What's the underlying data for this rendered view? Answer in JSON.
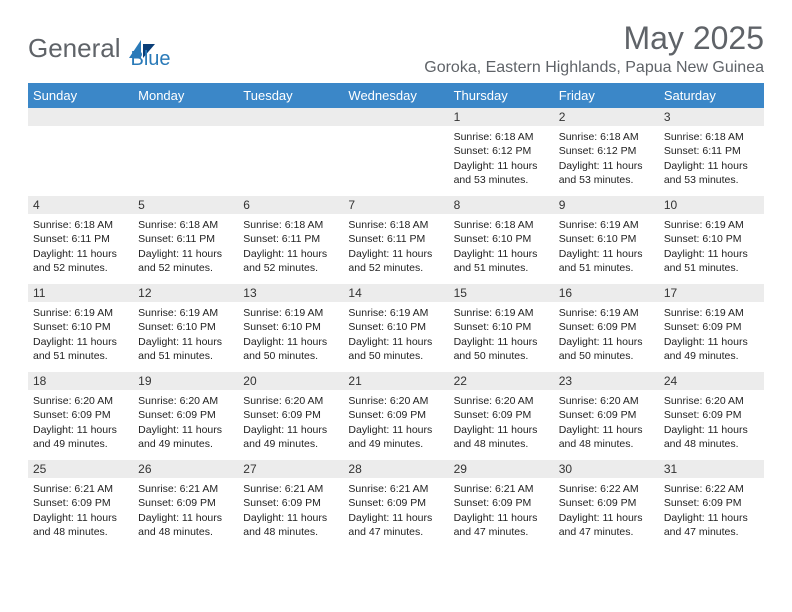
{
  "brand": {
    "word1": "General",
    "word2": "Blue"
  },
  "title": "May 2025",
  "location": "Goroka, Eastern Highlands, Papua New Guinea",
  "colors": {
    "header_bg": "#3b87c8",
    "header_text": "#ffffff",
    "daynum_bg": "#ececec",
    "rule": "#3b6fa0",
    "brand_gray": "#5f6368",
    "brand_blue": "#2a7ab8"
  },
  "dow": [
    "Sunday",
    "Monday",
    "Tuesday",
    "Wednesday",
    "Thursday",
    "Friday",
    "Saturday"
  ],
  "weeks": [
    [
      {
        "n": "",
        "t": ""
      },
      {
        "n": "",
        "t": ""
      },
      {
        "n": "",
        "t": ""
      },
      {
        "n": "",
        "t": ""
      },
      {
        "n": "1",
        "t": "Sunrise: 6:18 AM\nSunset: 6:12 PM\nDaylight: 11 hours and 53 minutes."
      },
      {
        "n": "2",
        "t": "Sunrise: 6:18 AM\nSunset: 6:12 PM\nDaylight: 11 hours and 53 minutes."
      },
      {
        "n": "3",
        "t": "Sunrise: 6:18 AM\nSunset: 6:11 PM\nDaylight: 11 hours and 53 minutes."
      }
    ],
    [
      {
        "n": "4",
        "t": "Sunrise: 6:18 AM\nSunset: 6:11 PM\nDaylight: 11 hours and 52 minutes."
      },
      {
        "n": "5",
        "t": "Sunrise: 6:18 AM\nSunset: 6:11 PM\nDaylight: 11 hours and 52 minutes."
      },
      {
        "n": "6",
        "t": "Sunrise: 6:18 AM\nSunset: 6:11 PM\nDaylight: 11 hours and 52 minutes."
      },
      {
        "n": "7",
        "t": "Sunrise: 6:18 AM\nSunset: 6:11 PM\nDaylight: 11 hours and 52 minutes."
      },
      {
        "n": "8",
        "t": "Sunrise: 6:18 AM\nSunset: 6:10 PM\nDaylight: 11 hours and 51 minutes."
      },
      {
        "n": "9",
        "t": "Sunrise: 6:19 AM\nSunset: 6:10 PM\nDaylight: 11 hours and 51 minutes."
      },
      {
        "n": "10",
        "t": "Sunrise: 6:19 AM\nSunset: 6:10 PM\nDaylight: 11 hours and 51 minutes."
      }
    ],
    [
      {
        "n": "11",
        "t": "Sunrise: 6:19 AM\nSunset: 6:10 PM\nDaylight: 11 hours and 51 minutes."
      },
      {
        "n": "12",
        "t": "Sunrise: 6:19 AM\nSunset: 6:10 PM\nDaylight: 11 hours and 51 minutes."
      },
      {
        "n": "13",
        "t": "Sunrise: 6:19 AM\nSunset: 6:10 PM\nDaylight: 11 hours and 50 minutes."
      },
      {
        "n": "14",
        "t": "Sunrise: 6:19 AM\nSunset: 6:10 PM\nDaylight: 11 hours and 50 minutes."
      },
      {
        "n": "15",
        "t": "Sunrise: 6:19 AM\nSunset: 6:10 PM\nDaylight: 11 hours and 50 minutes."
      },
      {
        "n": "16",
        "t": "Sunrise: 6:19 AM\nSunset: 6:09 PM\nDaylight: 11 hours and 50 minutes."
      },
      {
        "n": "17",
        "t": "Sunrise: 6:19 AM\nSunset: 6:09 PM\nDaylight: 11 hours and 49 minutes."
      }
    ],
    [
      {
        "n": "18",
        "t": "Sunrise: 6:20 AM\nSunset: 6:09 PM\nDaylight: 11 hours and 49 minutes."
      },
      {
        "n": "19",
        "t": "Sunrise: 6:20 AM\nSunset: 6:09 PM\nDaylight: 11 hours and 49 minutes."
      },
      {
        "n": "20",
        "t": "Sunrise: 6:20 AM\nSunset: 6:09 PM\nDaylight: 11 hours and 49 minutes."
      },
      {
        "n": "21",
        "t": "Sunrise: 6:20 AM\nSunset: 6:09 PM\nDaylight: 11 hours and 49 minutes."
      },
      {
        "n": "22",
        "t": "Sunrise: 6:20 AM\nSunset: 6:09 PM\nDaylight: 11 hours and 48 minutes."
      },
      {
        "n": "23",
        "t": "Sunrise: 6:20 AM\nSunset: 6:09 PM\nDaylight: 11 hours and 48 minutes."
      },
      {
        "n": "24",
        "t": "Sunrise: 6:20 AM\nSunset: 6:09 PM\nDaylight: 11 hours and 48 minutes."
      }
    ],
    [
      {
        "n": "25",
        "t": "Sunrise: 6:21 AM\nSunset: 6:09 PM\nDaylight: 11 hours and 48 minutes."
      },
      {
        "n": "26",
        "t": "Sunrise: 6:21 AM\nSunset: 6:09 PM\nDaylight: 11 hours and 48 minutes."
      },
      {
        "n": "27",
        "t": "Sunrise: 6:21 AM\nSunset: 6:09 PM\nDaylight: 11 hours and 48 minutes."
      },
      {
        "n": "28",
        "t": "Sunrise: 6:21 AM\nSunset: 6:09 PM\nDaylight: 11 hours and 47 minutes."
      },
      {
        "n": "29",
        "t": "Sunrise: 6:21 AM\nSunset: 6:09 PM\nDaylight: 11 hours and 47 minutes."
      },
      {
        "n": "30",
        "t": "Sunrise: 6:22 AM\nSunset: 6:09 PM\nDaylight: 11 hours and 47 minutes."
      },
      {
        "n": "31",
        "t": "Sunrise: 6:22 AM\nSunset: 6:09 PM\nDaylight: 11 hours and 47 minutes."
      }
    ]
  ]
}
